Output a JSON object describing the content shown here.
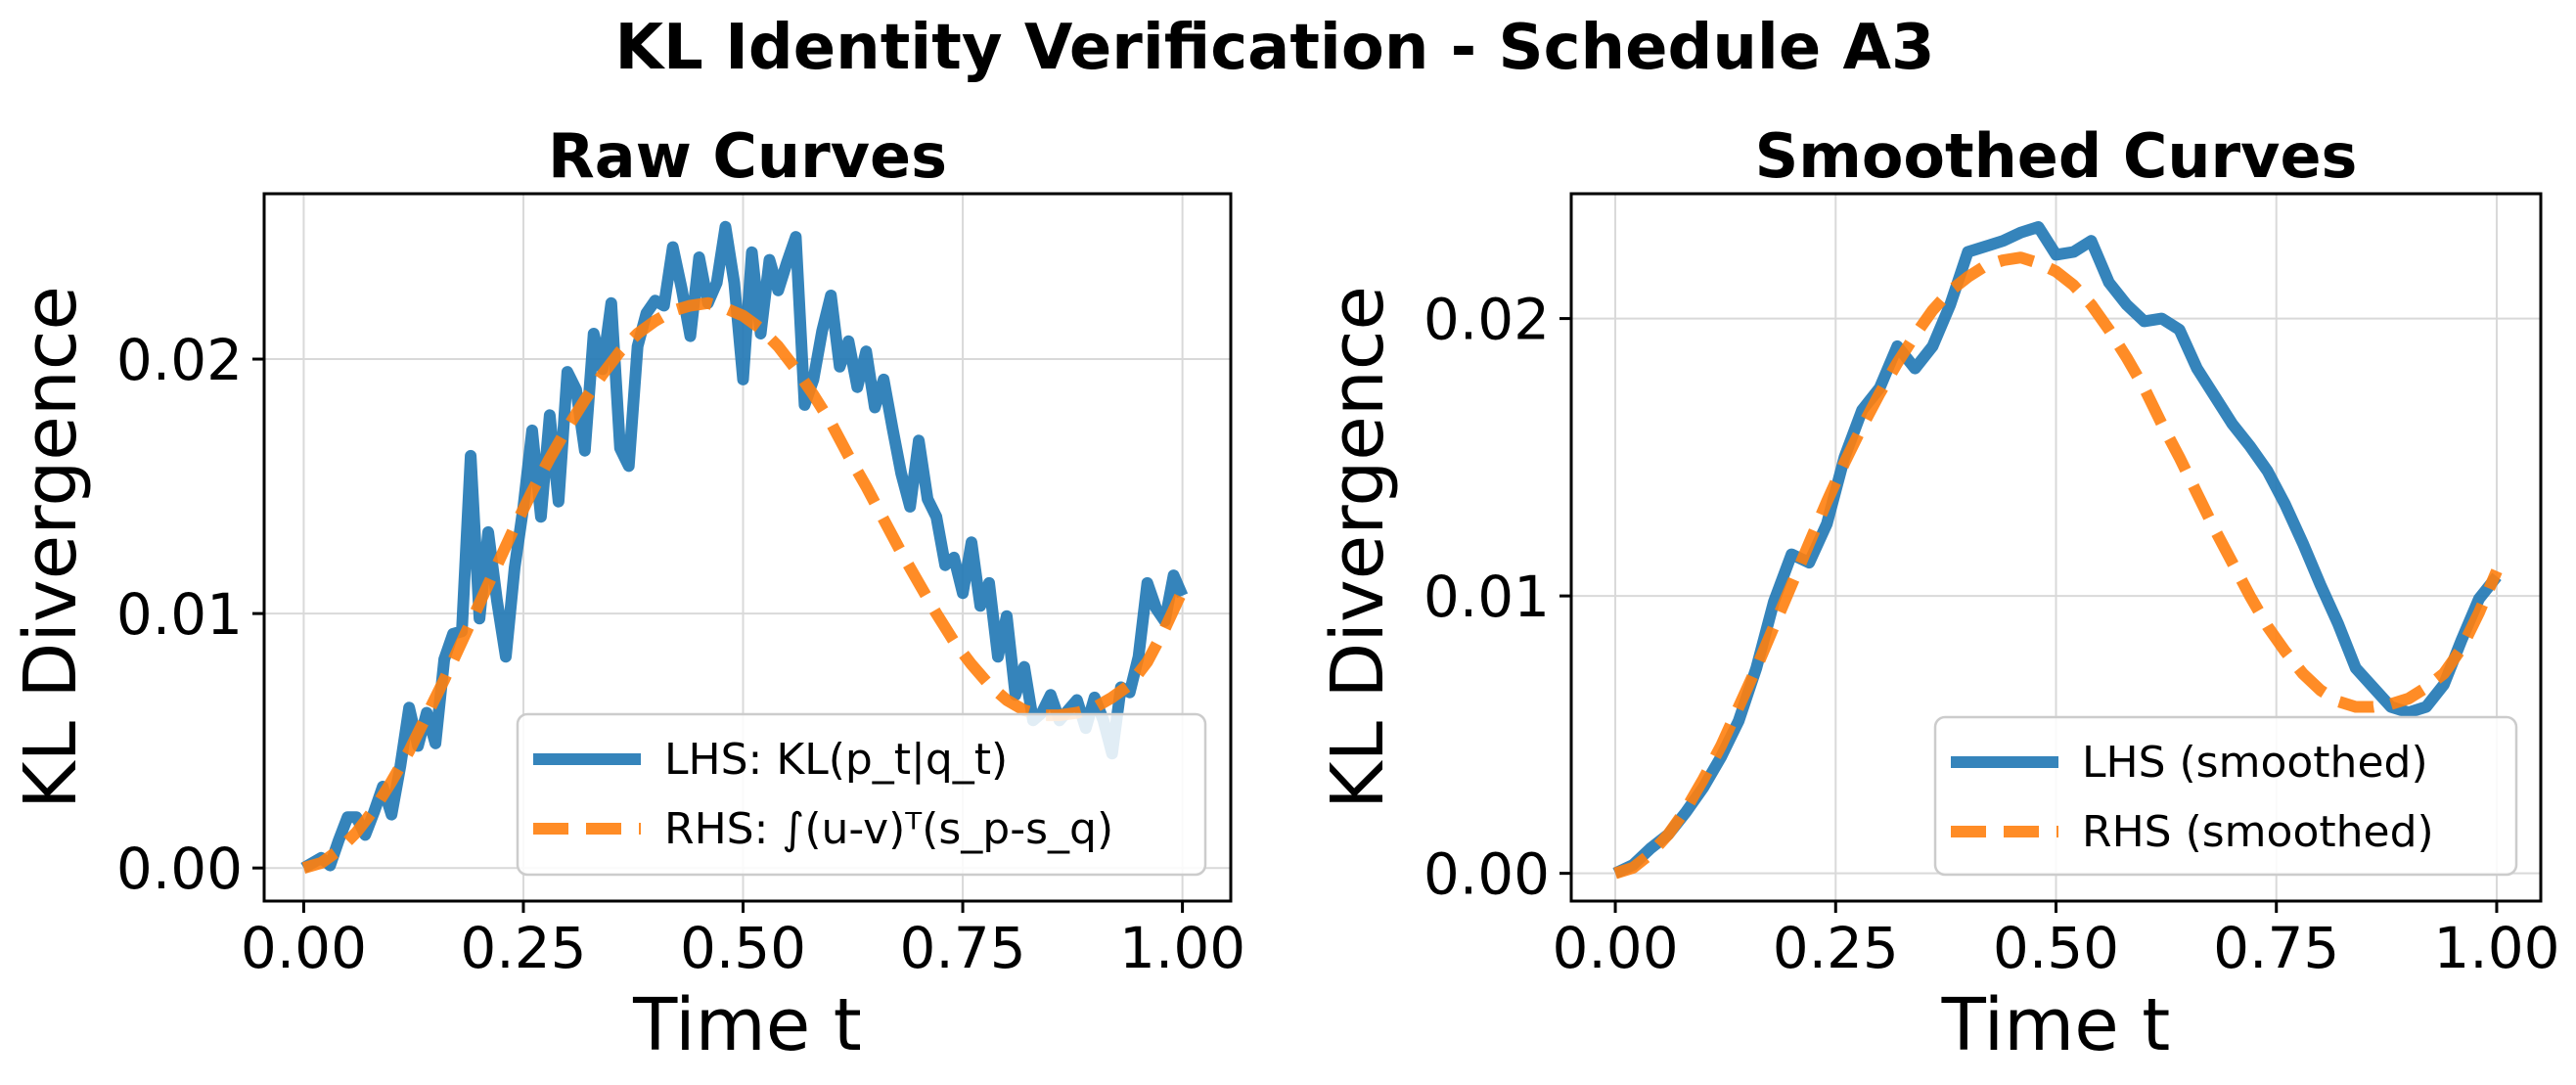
{
  "figure": {
    "title": "KL Identity Verification - Schedule A3"
  },
  "chart_data": [
    {
      "type": "line",
      "title": "Raw Curves",
      "xlabel": "Time t",
      "ylabel": "KL Divergence",
      "xlim": [
        -0.045,
        1.055
      ],
      "ylim": [
        -0.0013,
        0.0265
      ],
      "xticks": [
        0.0,
        0.25,
        0.5,
        0.75,
        1.0
      ],
      "xtick_labels": [
        "0.00",
        "0.25",
        "0.50",
        "0.75",
        "1.00"
      ],
      "yticks": [
        0.0,
        0.01,
        0.02
      ],
      "ytick_labels": [
        "0.00",
        "0.01",
        "0.02"
      ],
      "grid": true,
      "legend_position": "lower-right",
      "series": [
        {
          "name": "LHS: KL(p_t|q_t)",
          "color": "#1f77b4",
          "style": "solid",
          "x": [
            0,
            0.02,
            0.03,
            0.04,
            0.05,
            0.06,
            0.07,
            0.08,
            0.09,
            0.1,
            0.11,
            0.12,
            0.13,
            0.14,
            0.15,
            0.16,
            0.17,
            0.18,
            0.19,
            0.2,
            0.21,
            0.22,
            0.23,
            0.24,
            0.25,
            0.26,
            0.27,
            0.28,
            0.29,
            0.3,
            0.31,
            0.32,
            0.33,
            0.34,
            0.35,
            0.36,
            0.37,
            0.38,
            0.39,
            0.4,
            0.41,
            0.42,
            0.43,
            0.44,
            0.45,
            0.46,
            0.47,
            0.48,
            0.49,
            0.5,
            0.51,
            0.52,
            0.53,
            0.54,
            0.55,
            0.56,
            0.57,
            0.58,
            0.59,
            0.6,
            0.61,
            0.62,
            0.63,
            0.64,
            0.65,
            0.66,
            0.67,
            0.68,
            0.69,
            0.7,
            0.71,
            0.72,
            0.73,
            0.74,
            0.75,
            0.76,
            0.77,
            0.78,
            0.79,
            0.8,
            0.81,
            0.82,
            0.83,
            0.84,
            0.85,
            0.86,
            0.87,
            0.88,
            0.89,
            0.9,
            0.91,
            0.92,
            0.93,
            0.94,
            0.95,
            0.96,
            0.97,
            0.98,
            0.99,
            1.0
          ],
          "y": [
            0.0,
            0.0004,
            0.0001,
            0.0011,
            0.002,
            0.002,
            0.0013,
            0.0022,
            0.0032,
            0.0021,
            0.004,
            0.0063,
            0.0048,
            0.0061,
            0.0049,
            0.0082,
            0.0092,
            0.0093,
            0.0162,
            0.0098,
            0.0132,
            0.0105,
            0.0083,
            0.0118,
            0.0142,
            0.0172,
            0.0138,
            0.0178,
            0.0144,
            0.0195,
            0.0188,
            0.0164,
            0.021,
            0.0196,
            0.0222,
            0.0165,
            0.0158,
            0.0205,
            0.0218,
            0.0223,
            0.0221,
            0.0244,
            0.0228,
            0.0209,
            0.024,
            0.0222,
            0.023,
            0.0252,
            0.023,
            0.0192,
            0.0242,
            0.021,
            0.0239,
            0.0227,
            0.0238,
            0.0248,
            0.0182,
            0.0192,
            0.0211,
            0.0225,
            0.0197,
            0.0207,
            0.0189,
            0.0203,
            0.0181,
            0.0192,
            0.0173,
            0.0155,
            0.0142,
            0.0168,
            0.0145,
            0.0138,
            0.0119,
            0.0122,
            0.0108,
            0.0128,
            0.0103,
            0.0112,
            0.0083,
            0.0099,
            0.0068,
            0.0079,
            0.0058,
            0.0061,
            0.0068,
            0.0058,
            0.0062,
            0.0066,
            0.0055,
            0.0067,
            0.0058,
            0.0045,
            0.0071,
            0.0069,
            0.0083,
            0.0112,
            0.0102,
            0.0097,
            0.0115,
            0.0107
          ]
        },
        {
          "name": "RHS: ∫(u-v)ᵀ(s_p-s_q)",
          "color": "#ff7f0e",
          "style": "dashed",
          "x": [
            0,
            0.02,
            0.04,
            0.06,
            0.08,
            0.1,
            0.12,
            0.14,
            0.16,
            0.18,
            0.2,
            0.22,
            0.24,
            0.26,
            0.28,
            0.3,
            0.32,
            0.34,
            0.36,
            0.38,
            0.4,
            0.42,
            0.44,
            0.46,
            0.48,
            0.5,
            0.52,
            0.54,
            0.56,
            0.58,
            0.6,
            0.62,
            0.64,
            0.66,
            0.68,
            0.7,
            0.72,
            0.74,
            0.76,
            0.78,
            0.8,
            0.82,
            0.84,
            0.86,
            0.88,
            0.9,
            0.92,
            0.94,
            0.96,
            0.98,
            1.0
          ],
          "y": [
            0.0,
            0.0002,
            0.0007,
            0.0014,
            0.0023,
            0.0034,
            0.0046,
            0.006,
            0.0074,
            0.0089,
            0.0104,
            0.0119,
            0.0134,
            0.0148,
            0.0161,
            0.0173,
            0.0184,
            0.0194,
            0.0203,
            0.021,
            0.0215,
            0.0219,
            0.0221,
            0.0222,
            0.022,
            0.0217,
            0.0212,
            0.0205,
            0.0196,
            0.0186,
            0.0175,
            0.0162,
            0.015,
            0.0137,
            0.0124,
            0.0112,
            0.01,
            0.0089,
            0.008,
            0.0072,
            0.0066,
            0.0062,
            0.006,
            0.006,
            0.0061,
            0.0063,
            0.0067,
            0.0072,
            0.0081,
            0.0094,
            0.0109
          ]
        }
      ]
    },
    {
      "type": "line",
      "title": "Smoothed Curves",
      "xlabel": "Time t",
      "ylabel": "KL Divergence",
      "xlim": [
        -0.05,
        1.05
      ],
      "ylim": [
        -0.001,
        0.0245
      ],
      "xticks": [
        0.0,
        0.25,
        0.5,
        0.75,
        1.0
      ],
      "xtick_labels": [
        "0.00",
        "0.25",
        "0.50",
        "0.75",
        "1.00"
      ],
      "yticks": [
        0.0,
        0.01,
        0.02
      ],
      "ytick_labels": [
        "0.00",
        "0.01",
        "0.02"
      ],
      "grid": true,
      "legend_position": "lower-right",
      "series": [
        {
          "name": "LHS (smoothed)",
          "color": "#1f77b4",
          "style": "solid",
          "x": [
            0,
            0.02,
            0.04,
            0.06,
            0.08,
            0.1,
            0.12,
            0.14,
            0.16,
            0.18,
            0.2,
            0.22,
            0.24,
            0.26,
            0.28,
            0.3,
            0.32,
            0.34,
            0.36,
            0.38,
            0.4,
            0.42,
            0.44,
            0.46,
            0.48,
            0.5,
            0.52,
            0.54,
            0.56,
            0.58,
            0.6,
            0.62,
            0.64,
            0.66,
            0.68,
            0.7,
            0.72,
            0.74,
            0.76,
            0.78,
            0.8,
            0.82,
            0.84,
            0.86,
            0.88,
            0.9,
            0.92,
            0.94,
            0.96,
            0.98,
            1.0
          ],
          "y": [
            0.0,
            0.0003,
            0.0009,
            0.0014,
            0.0022,
            0.0031,
            0.0042,
            0.0055,
            0.0074,
            0.0098,
            0.0115,
            0.0112,
            0.0126,
            0.015,
            0.0167,
            0.0175,
            0.019,
            0.0182,
            0.019,
            0.0205,
            0.0224,
            0.0226,
            0.0228,
            0.0231,
            0.0233,
            0.0223,
            0.0224,
            0.0228,
            0.0213,
            0.0205,
            0.0199,
            0.02,
            0.0196,
            0.0182,
            0.0172,
            0.0162,
            0.0154,
            0.0145,
            0.0133,
            0.0119,
            0.0104,
            0.009,
            0.0074,
            0.0067,
            0.006,
            0.0058,
            0.006,
            0.0068,
            0.0084,
            0.0099,
            0.0107
          ]
        },
        {
          "name": "RHS (smoothed)",
          "color": "#ff7f0e",
          "style": "dashed",
          "x": [
            0,
            0.02,
            0.04,
            0.06,
            0.08,
            0.1,
            0.12,
            0.14,
            0.16,
            0.18,
            0.2,
            0.22,
            0.24,
            0.26,
            0.28,
            0.3,
            0.32,
            0.34,
            0.36,
            0.38,
            0.4,
            0.42,
            0.44,
            0.46,
            0.48,
            0.5,
            0.52,
            0.54,
            0.56,
            0.58,
            0.6,
            0.62,
            0.64,
            0.66,
            0.68,
            0.7,
            0.72,
            0.74,
            0.76,
            0.78,
            0.8,
            0.82,
            0.84,
            0.86,
            0.88,
            0.9,
            0.92,
            0.94,
            0.96,
            0.98,
            1.0
          ],
          "y": [
            0.0,
            0.0002,
            0.0007,
            0.0014,
            0.0023,
            0.0034,
            0.0046,
            0.006,
            0.0074,
            0.0089,
            0.0104,
            0.0119,
            0.0134,
            0.0148,
            0.0161,
            0.0173,
            0.0184,
            0.0194,
            0.0203,
            0.021,
            0.0215,
            0.0219,
            0.0221,
            0.0222,
            0.022,
            0.0217,
            0.0212,
            0.0205,
            0.0196,
            0.0186,
            0.0175,
            0.0162,
            0.015,
            0.0137,
            0.0124,
            0.0112,
            0.01,
            0.0089,
            0.008,
            0.0072,
            0.0066,
            0.0062,
            0.006,
            0.006,
            0.0061,
            0.0063,
            0.0067,
            0.0072,
            0.0081,
            0.0094,
            0.0109
          ]
        }
      ]
    }
  ]
}
